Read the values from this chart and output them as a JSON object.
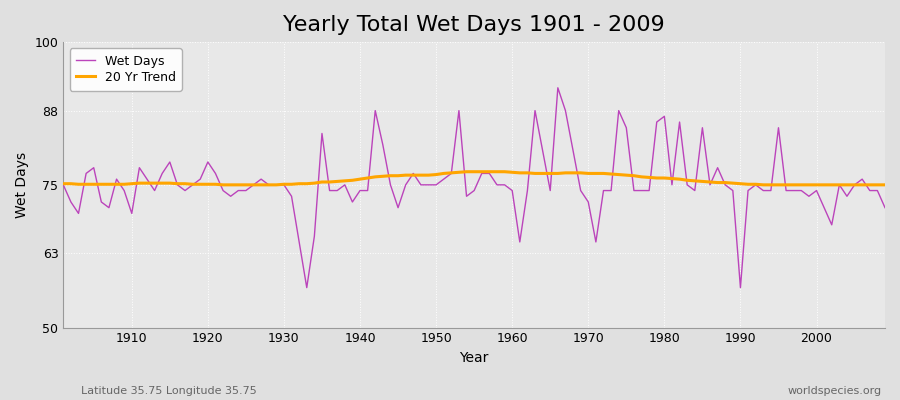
{
  "title": "Yearly Total Wet Days 1901 - 2009",
  "xlabel": "Year",
  "ylabel": "Wet Days",
  "subtitle_left": "Latitude 35.75 Longitude 35.75",
  "subtitle_right": "worldspecies.org",
  "legend_wet": "Wet Days",
  "legend_trend": "20 Yr Trend",
  "years": [
    1901,
    1902,
    1903,
    1904,
    1905,
    1906,
    1907,
    1908,
    1909,
    1910,
    1911,
    1912,
    1913,
    1914,
    1915,
    1916,
    1917,
    1918,
    1919,
    1920,
    1921,
    1922,
    1923,
    1924,
    1925,
    1926,
    1927,
    1928,
    1929,
    1930,
    1931,
    1932,
    1933,
    1934,
    1935,
    1936,
    1937,
    1938,
    1939,
    1940,
    1941,
    1942,
    1943,
    1944,
    1945,
    1946,
    1947,
    1948,
    1949,
    1950,
    1951,
    1952,
    1953,
    1954,
    1955,
    1956,
    1957,
    1958,
    1959,
    1960,
    1961,
    1962,
    1963,
    1964,
    1965,
    1966,
    1967,
    1968,
    1969,
    1970,
    1971,
    1972,
    1973,
    1974,
    1975,
    1976,
    1977,
    1978,
    1979,
    1980,
    1981,
    1982,
    1983,
    1984,
    1985,
    1986,
    1987,
    1988,
    1989,
    1990,
    1991,
    1992,
    1993,
    1994,
    1995,
    1996,
    1997,
    1998,
    1999,
    2000,
    2001,
    2002,
    2003,
    2004,
    2005,
    2006,
    2007,
    2008,
    2009
  ],
  "wet_days": [
    75,
    72,
    70,
    77,
    78,
    72,
    71,
    76,
    74,
    70,
    78,
    76,
    74,
    77,
    79,
    75,
    74,
    75,
    76,
    79,
    77,
    74,
    73,
    74,
    74,
    75,
    76,
    75,
    75,
    75,
    73,
    65,
    57,
    66,
    84,
    74,
    74,
    75,
    72,
    74,
    74,
    88,
    82,
    75,
    71,
    75,
    77,
    75,
    75,
    75,
    76,
    77,
    88,
    73,
    74,
    77,
    77,
    75,
    75,
    74,
    65,
    74,
    88,
    81,
    74,
    92,
    88,
    81,
    74,
    72,
    65,
    74,
    74,
    88,
    85,
    74,
    74,
    74,
    86,
    87,
    75,
    86,
    75,
    74,
    85,
    75,
    78,
    75,
    74,
    57,
    74,
    75,
    74,
    74,
    85,
    74,
    74,
    74,
    73,
    74,
    71,
    68,
    75,
    73,
    75,
    76,
    74,
    74,
    71
  ],
  "trend": [
    75.2,
    75.2,
    75.1,
    75.1,
    75.1,
    75.1,
    75.1,
    75.1,
    75.1,
    75.2,
    75.3,
    75.3,
    75.3,
    75.3,
    75.3,
    75.2,
    75.2,
    75.1,
    75.1,
    75.1,
    75.1,
    75.0,
    75.0,
    75.0,
    75.0,
    75.0,
    75.0,
    75.0,
    75.0,
    75.1,
    75.1,
    75.2,
    75.2,
    75.3,
    75.5,
    75.5,
    75.6,
    75.7,
    75.8,
    76.0,
    76.2,
    76.4,
    76.5,
    76.6,
    76.6,
    76.7,
    76.7,
    76.7,
    76.7,
    76.8,
    77.0,
    77.1,
    77.2,
    77.3,
    77.3,
    77.3,
    77.3,
    77.3,
    77.3,
    77.2,
    77.1,
    77.1,
    77.0,
    77.0,
    77.0,
    77.0,
    77.1,
    77.1,
    77.1,
    77.0,
    77.0,
    77.0,
    76.9,
    76.8,
    76.7,
    76.6,
    76.4,
    76.3,
    76.2,
    76.2,
    76.1,
    76.0,
    75.8,
    75.7,
    75.6,
    75.5,
    75.4,
    75.4,
    75.3,
    75.2,
    75.1,
    75.1,
    75.0,
    75.0,
    75.0,
    75.0,
    75.0,
    75.0,
    75.0,
    75.0,
    75.0,
    75.0,
    75.0,
    75.0,
    75.0,
    75.0,
    75.0,
    75.0,
    75.0
  ],
  "wet_color": "#BB44BB",
  "trend_color": "#FFA500",
  "bg_color": "#E0E0E0",
  "plot_bg_color": "#E8E8E8",
  "grid_color": "#FFFFFF",
  "ylim": [
    50,
    100
  ],
  "yticks": [
    50,
    63,
    75,
    88,
    100
  ],
  "xlim": [
    1901,
    2009
  ],
  "xticks": [
    1910,
    1920,
    1930,
    1940,
    1950,
    1960,
    1970,
    1980,
    1990,
    2000
  ],
  "title_fontsize": 16,
  "axis_label_fontsize": 10,
  "tick_fontsize": 9,
  "legend_fontsize": 9,
  "annotation_fontsize": 8
}
